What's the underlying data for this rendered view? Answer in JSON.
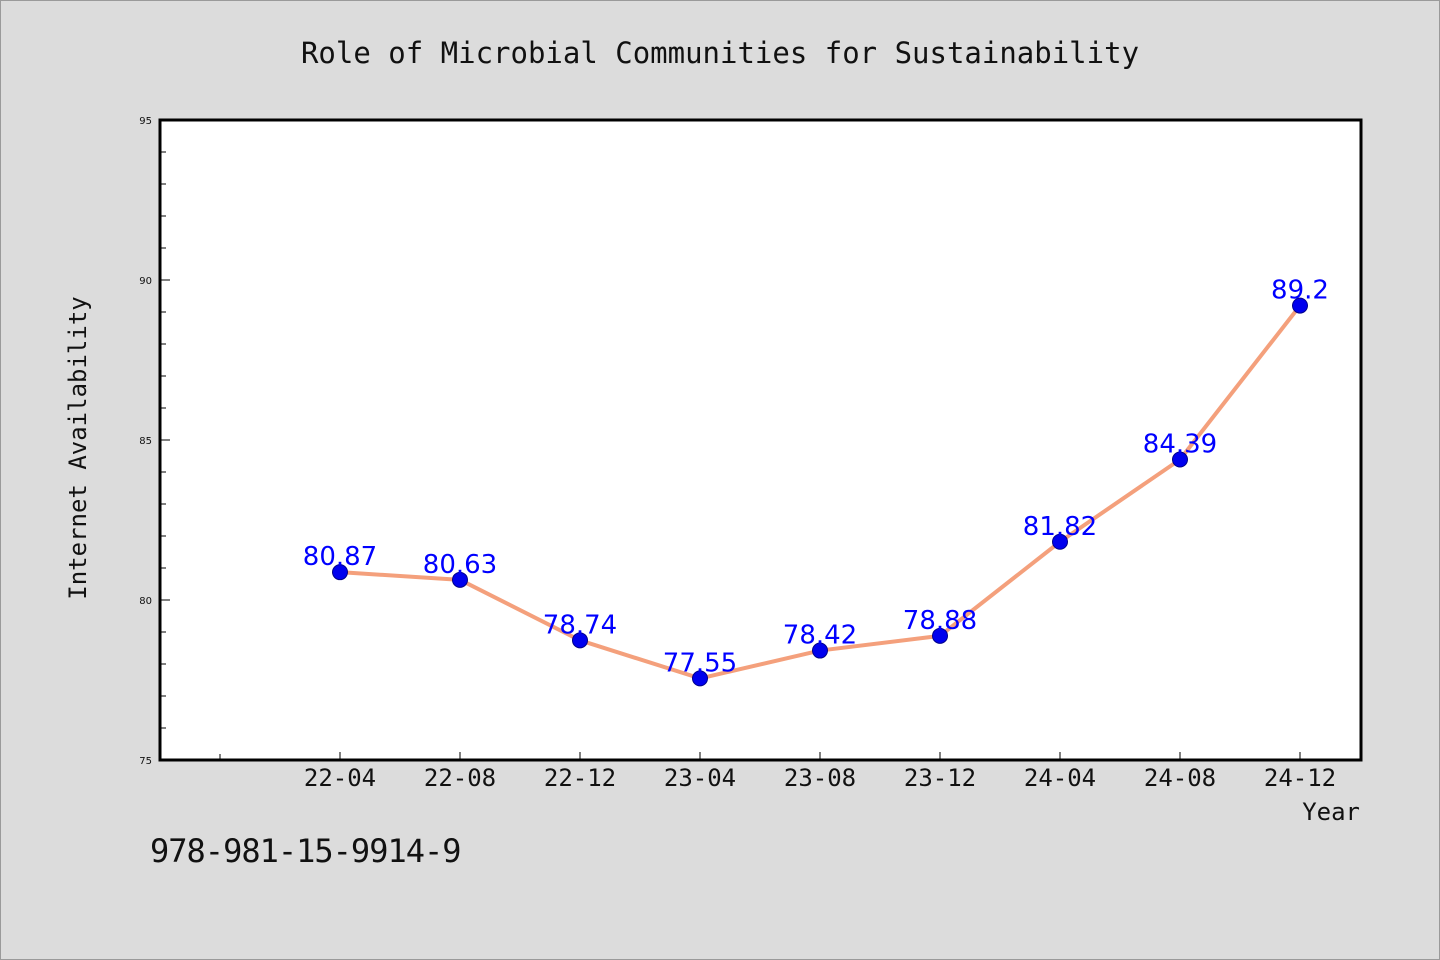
{
  "chart_data": {
    "type": "line",
    "title": "Role of Microbial Communities for Sustainability",
    "xlabel": "Year",
    "ylabel": "Internet Availability",
    "categories": [
      "22-04",
      "22-08",
      "22-12",
      "23-04",
      "23-08",
      "23-12",
      "24-04",
      "24-08",
      "24-12"
    ],
    "values": [
      80.87,
      80.63,
      78.74,
      77.55,
      78.42,
      78.88,
      81.82,
      84.39,
      89.2
    ],
    "data_labels": [
      "80.87",
      "80.63",
      "78.74",
      "77.55",
      "78.42",
      "78.88",
      "81.82",
      "84.39",
      "89.2"
    ],
    "ylim": [
      75,
      95
    ],
    "yticks": [
      75,
      80,
      85,
      90,
      95
    ],
    "grid": false,
    "colors": {
      "line": "#f4a07c",
      "marker": "#0000ee",
      "label": "#0000ff",
      "plot_bg": "#ffffff",
      "page_bg": "#dcdcdc"
    }
  },
  "footer": {
    "code": "978-981-15-9914-9"
  }
}
